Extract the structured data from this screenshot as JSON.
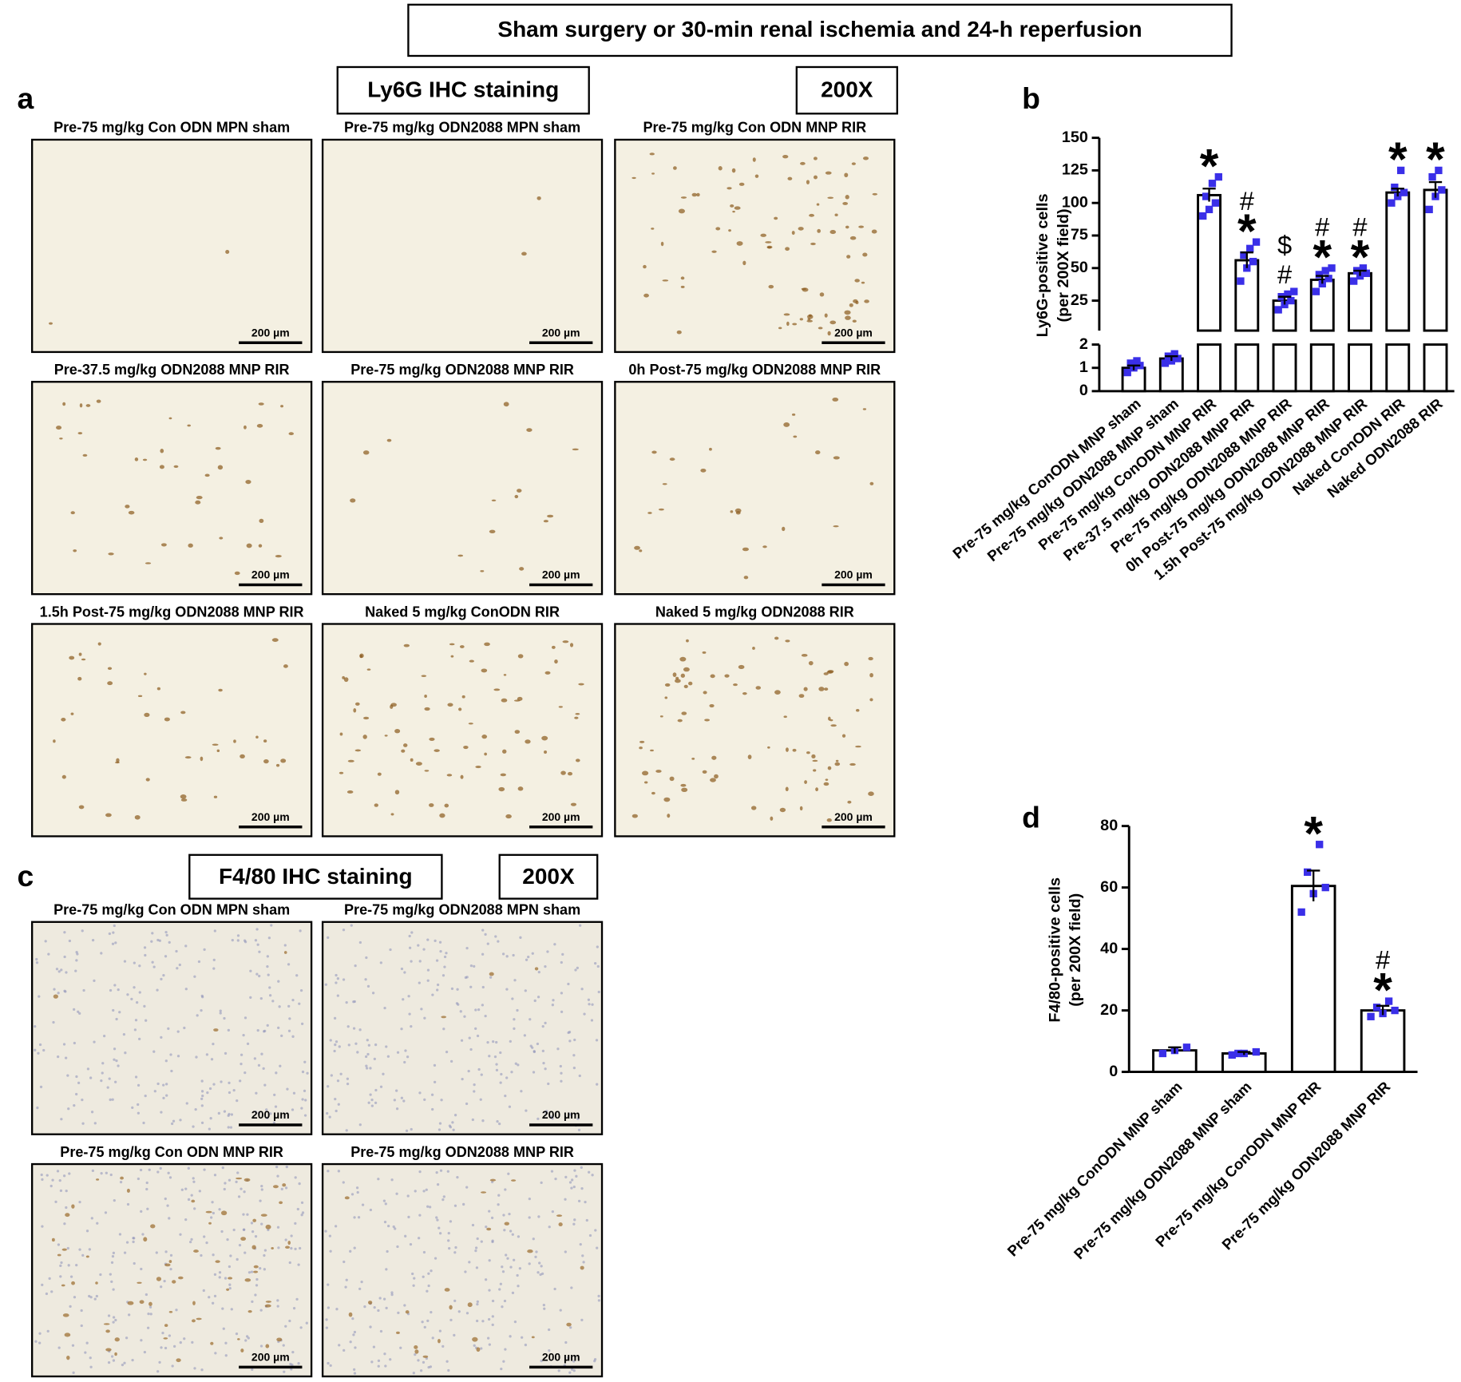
{
  "title": "Sham surgery or 30-min renal ischemia and 24-h reperfusion",
  "scale_bar": "200 µm",
  "panels": {
    "a": {
      "label": "a",
      "stain": "Ly6G IHC staining",
      "magnification": "200X",
      "images": [
        "Pre-75 mg/kg Con ODN MPN sham",
        "Pre-75 mg/kg ODN2088 MPN sham",
        "Pre-75 mg/kg Con ODN MNP RIR",
        "Pre-37.5 mg/kg ODN2088 MNP RIR",
        "Pre-75 mg/kg ODN2088 MNP RIR",
        "0h Post-75 mg/kg ODN2088 MNP RIR",
        "1.5h Post-75 mg/kg ODN2088 MNP RIR",
        "Naked 5 mg/kg ConODN RIR",
        "Naked 5 mg/kg ODN2088 RIR"
      ]
    },
    "c": {
      "label": "c",
      "stain": "F4/80 IHC staining",
      "magnification": "200X",
      "images": [
        "Pre-75 mg/kg Con ODN MPN sham",
        "Pre-75 mg/kg ODN2088 MPN sham",
        "Pre-75 mg/kg Con ODN MNP RIR",
        "Pre-75 mg/kg ODN2088 MNP RIR"
      ]
    }
  },
  "chart_data": [
    {
      "type": "bar",
      "label": "b",
      "y_label": [
        "Ly6G-positive cells",
        "(per 200X field)"
      ],
      "categories": [
        "Pre-75 mg/kg ConODN MNP sham",
        "Pre-75 mg/kg ODN2088 MNP sham",
        "Pre-75 mg/kg ConODN MNP RIR",
        "Pre-37.5 mg/kg ODN2088 MNP RIR",
        "Pre-75 mg/kg ODN2088 MNP RIR",
        "0h Post-75 mg/kg ODN2088 MNP RIR",
        "1.5h Post-75 mg/kg ODN2088 MNP RIR",
        "Naked ConODN RIR",
        "Naked ODN2088 RIR"
      ],
      "values": [
        1.0,
        1.4,
        106,
        56,
        25,
        41,
        46,
        108,
        110
      ],
      "errors": [
        0.1,
        0.1,
        5,
        6,
        3,
        3,
        2,
        3,
        6
      ],
      "points": [
        [
          0.8,
          1.0,
          1.1,
          1.2,
          1.3
        ],
        [
          1.2,
          1.3,
          1.4,
          1.5,
          1.6
        ],
        [
          90,
          95,
          100,
          105,
          115,
          120
        ],
        [
          40,
          50,
          55,
          60,
          65,
          70
        ],
        [
          18,
          22,
          25,
          28,
          30,
          32
        ],
        [
          32,
          38,
          42,
          45,
          48,
          50
        ],
        [
          40,
          44,
          46,
          48,
          50
        ],
        [
          100,
          105,
          108,
          112,
          125
        ],
        [
          95,
          105,
          110,
          120,
          125
        ]
      ],
      "color": "#ffffff",
      "point_color": "#3a2fe8",
      "y_segments": [
        {
          "ylim": [
            0,
            2
          ],
          "yticks": [
            0,
            1,
            2
          ]
        },
        {
          "ylim": [
            2,
            150
          ],
          "yticks": [
            25,
            50,
            75,
            100,
            125,
            150
          ]
        }
      ],
      "annotations": [
        {
          "category": 2,
          "text": "*"
        },
        {
          "category": 3,
          "text": "*"
        },
        {
          "category": 3,
          "text": "#"
        },
        {
          "category": 4,
          "text": "#"
        },
        {
          "category": 4,
          "text": "$"
        },
        {
          "category": 5,
          "text": "*"
        },
        {
          "category": 5,
          "text": "#"
        },
        {
          "category": 6,
          "text": "*"
        },
        {
          "category": 6,
          "text": "#"
        },
        {
          "category": 7,
          "text": "*"
        },
        {
          "category": 8,
          "text": "*"
        }
      ]
    },
    {
      "type": "bar",
      "label": "d",
      "y_label": [
        "F4/80-positive cells",
        "(per 200X field)"
      ],
      "categories": [
        "Pre-75 mg/kg ConODN MNP sham",
        "Pre-75 mg/kg ODN2088 MNP sham",
        "Pre-75 mg/kg ConODN MNP RIR",
        "Pre-75 mg/kg ODN2088 MNP RIR"
      ],
      "values": [
        7,
        6,
        60.5,
        20
      ],
      "errors": [
        1,
        0.5,
        5,
        1.5
      ],
      "points": [
        [
          6,
          7,
          8
        ],
        [
          5.5,
          6,
          6.5,
          6
        ],
        [
          52,
          58,
          60,
          65,
          74
        ],
        [
          18,
          19,
          20,
          21,
          23
        ]
      ],
      "color": "#ffffff",
      "point_color": "#3a2fe8",
      "ylim": [
        0,
        80
      ],
      "yticks": [
        0,
        20,
        40,
        60,
        80
      ],
      "annotations": [
        {
          "category": 2,
          "text": "*"
        },
        {
          "category": 3,
          "text": "*"
        },
        {
          "category": 3,
          "text": "#"
        }
      ]
    }
  ]
}
